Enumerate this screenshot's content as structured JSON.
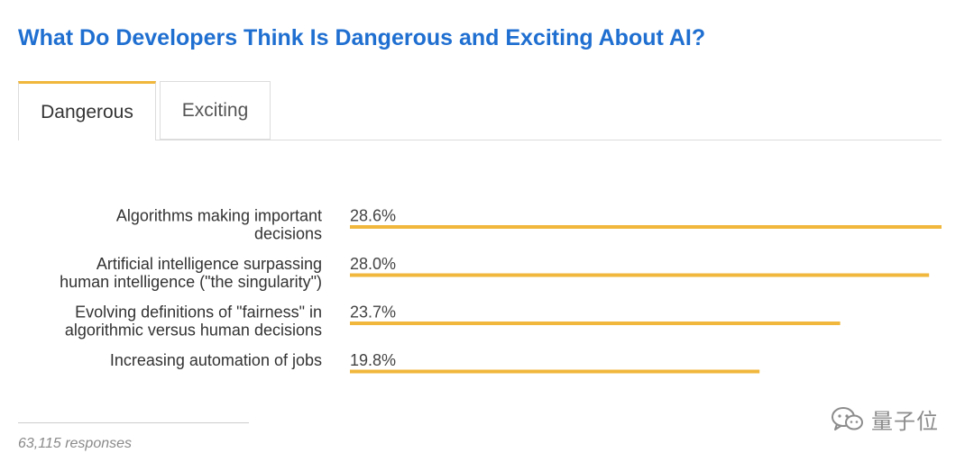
{
  "title": "What Do Developers Think Is Dangerous and Exciting About AI?",
  "tabs": [
    {
      "label": "Dangerous",
      "active": true
    },
    {
      "label": "Exciting",
      "active": false
    }
  ],
  "chart_data": {
    "type": "bar",
    "orientation": "horizontal",
    "title": "",
    "categories": [
      [
        "Algorithms making important",
        "decisions"
      ],
      [
        "Artificial intelligence surpassing",
        "human intelligence (\"the singularity\")"
      ],
      [
        "Evolving definitions of \"fairness\" in",
        "algorithmic versus human decisions"
      ],
      [
        "Increasing automation of jobs"
      ]
    ],
    "values": [
      28.6,
      28.0,
      23.7,
      19.8
    ],
    "value_labels": [
      "28.6%",
      "28.0%",
      "23.7%",
      "19.8%"
    ],
    "xlim": [
      0,
      28.6
    ],
    "bar_color": "#f0b73c",
    "grid": false,
    "legend": "none"
  },
  "footer": {
    "responses": "63,115 responses"
  },
  "watermark": {
    "text": "量子位",
    "icon": "wechat-icon"
  },
  "colors": {
    "title": "#1f6fd1",
    "accent": "#f0b73c"
  }
}
